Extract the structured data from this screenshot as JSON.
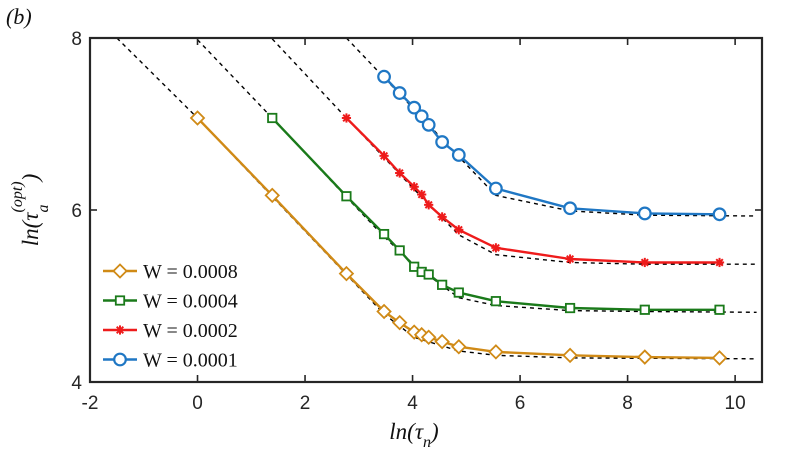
{
  "chart_data": {
    "type": "line",
    "panel_label": "(b)",
    "xlabel": {
      "base": "ln(τ",
      "sub": "n",
      "close": ")"
    },
    "ylabel": {
      "base": "ln(τ",
      "sub": "a",
      "sup": "(opt)",
      "close": ")"
    },
    "xlim": [
      -2,
      10.5
    ],
    "ylim": [
      4,
      8
    ],
    "xticks": [
      -2,
      0,
      2,
      4,
      6,
      8,
      10
    ],
    "yticks": [
      4,
      6,
      8
    ],
    "xtick_labels": [
      "-2",
      "0",
      "2",
      "4",
      "6",
      "8",
      "10"
    ],
    "ytick_labels": [
      "4",
      "6",
      "8"
    ],
    "grid": false,
    "legend_position": "bottom-left",
    "series": [
      {
        "name": "W = 0.0008",
        "color": "#D08A16",
        "marker": "diamond",
        "x": [
          0,
          1.39,
          2.77,
          3.47,
          3.76,
          4.03,
          4.17,
          4.3,
          4.55,
          4.86,
          5.55,
          6.93,
          8.32,
          9.71
        ],
        "y": [
          7.07,
          6.17,
          5.26,
          4.82,
          4.69,
          4.58,
          4.55,
          4.52,
          4.47,
          4.41,
          4.35,
          4.31,
          4.29,
          4.28
        ]
      },
      {
        "name": "W = 0.0004",
        "color": "#1A7A1A",
        "marker": "square",
        "x": [
          1.39,
          2.77,
          3.47,
          3.76,
          4.03,
          4.17,
          4.3,
          4.55,
          4.86,
          5.55,
          6.93,
          8.32,
          9.71
        ],
        "y": [
          7.07,
          6.16,
          5.72,
          5.53,
          5.34,
          5.28,
          5.25,
          5.13,
          5.04,
          4.94,
          4.86,
          4.84,
          4.84
        ]
      },
      {
        "name": "W = 0.0002",
        "color": "#EE1B1B",
        "marker": "asterisk",
        "x": [
          2.77,
          3.47,
          3.76,
          4.03,
          4.17,
          4.3,
          4.55,
          4.86,
          5.55,
          6.93,
          8.32,
          9.71
        ],
        "y": [
          7.07,
          6.63,
          6.43,
          6.27,
          6.18,
          6.06,
          5.92,
          5.77,
          5.56,
          5.43,
          5.39,
          5.39
        ]
      },
      {
        "name": "W = 0.0001",
        "color": "#1F77C4",
        "marker": "circle",
        "x": [
          3.47,
          3.76,
          4.03,
          4.17,
          4.3,
          4.55,
          4.86,
          5.55,
          6.93,
          8.32,
          9.71
        ],
        "y": [
          7.55,
          7.36,
          7.19,
          7.09,
          6.99,
          6.79,
          6.64,
          6.25,
          6.02,
          5.96,
          5.95
        ]
      }
    ],
    "asymptotes": [
      {
        "x": [
          -1.5,
          0,
          2.77,
          3.47,
          4.03,
          4.86,
          5.55,
          6.93,
          8.32,
          10.4
        ],
        "y": [
          8.0,
          7.07,
          5.25,
          4.79,
          4.52,
          4.36,
          4.31,
          4.28,
          4.275,
          4.27
        ]
      },
      {
        "x": [
          0,
          1.39,
          2.77,
          3.47,
          4.03,
          4.86,
          5.55,
          6.93,
          8.32,
          10.4
        ],
        "y": [
          7.98,
          7.07,
          6.15,
          5.69,
          5.36,
          4.98,
          4.89,
          4.83,
          4.82,
          4.81
        ]
      },
      {
        "x": [
          1.39,
          2.77,
          3.47,
          4.03,
          4.86,
          5.55,
          6.93,
          8.32,
          10.4
        ],
        "y": [
          7.99,
          7.07,
          6.61,
          6.24,
          5.71,
          5.48,
          5.39,
          5.37,
          5.37
        ]
      },
      {
        "x": [
          2.77,
          3.47,
          4.03,
          4.86,
          5.55,
          6.93,
          8.32,
          10.4
        ],
        "y": [
          8.0,
          7.54,
          7.17,
          6.62,
          6.17,
          5.99,
          5.94,
          5.93
        ]
      }
    ]
  }
}
